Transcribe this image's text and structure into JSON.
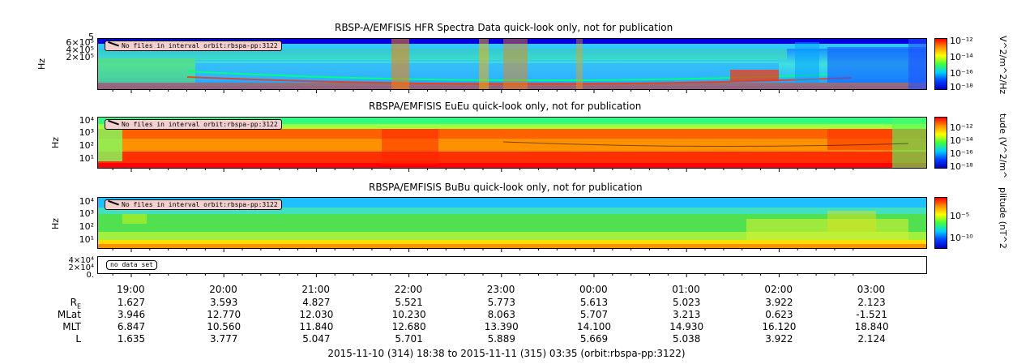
{
  "panels": [
    {
      "title": "RBSP-A/EMFISIS  HFR Spectra Data quick-look only, not for publication",
      "ylabel": "Hz",
      "yticks": [
        "6×10⁵",
        "4×10⁵",
        "2×10⁵"
      ],
      "yextra": "5",
      "badge": "No files in interval orbit:rbspa-pp:3122",
      "colorbar": {
        "title": "V^2/m^2/Hz",
        "ticks": [
          "10⁻¹²",
          "10⁻¹⁴",
          "10⁻¹⁶",
          "10⁻¹⁸"
        ]
      }
    },
    {
      "title": "RBSPA/EMFISIS  EuEu quick-look only, not for publication",
      "ylabel": "Hz",
      "yticks": [
        "10⁴",
        "10³",
        "10²",
        "10¹"
      ],
      "badge": "No files in interval orbit:rbspa-pp:3122",
      "colorbar": {
        "title": "tude (V^2/m^",
        "ticks": [
          "10⁻¹²",
          "10⁻¹⁴",
          "10⁻¹⁶",
          "10⁻¹⁸"
        ]
      }
    },
    {
      "title": "RBSPA/EMFISIS  BuBu quick-look only, not for publication",
      "ylabel": "Hz",
      "yticks": [
        "10⁴",
        "10³",
        "10²",
        "10¹"
      ],
      "badge": "No files in interval orbit:rbspa-pp:3122",
      "colorbar": {
        "title": "plitude (nT^2",
        "ticks": [
          "10⁻⁵",
          "10⁻¹⁰"
        ]
      }
    },
    {
      "title": "",
      "yticks": [
        "4×10⁴",
        "2×10⁴",
        "0."
      ],
      "badge": "no data set"
    }
  ],
  "chart_data": {
    "type": "heatmap",
    "time_ticks": [
      "19:00",
      "20:00",
      "21:00",
      "22:00",
      "23:00",
      "00:00",
      "01:00",
      "02:00",
      "03:00"
    ],
    "ephemeris": [
      {
        "name": "R",
        "subscript": "E",
        "values": [
          "1.627",
          "3.593",
          "4.827",
          "5.521",
          "5.773",
          "5.613",
          "5.023",
          "3.922",
          "2.123"
        ]
      },
      {
        "name": "MLat",
        "values": [
          "3.946",
          "12.770",
          "12.030",
          "10.230",
          "8.063",
          "5.707",
          "3.213",
          "0.623",
          "-1.521"
        ]
      },
      {
        "name": "MLT",
        "values": [
          "6.847",
          "10.560",
          "11.840",
          "12.680",
          "13.390",
          "14.100",
          "14.930",
          "16.120",
          "18.840"
        ]
      },
      {
        "name": "L",
        "values": [
          "1.635",
          "3.777",
          "5.047",
          "5.701",
          "5.889",
          "5.669",
          "5.038",
          "3.922",
          "2.124"
        ]
      }
    ],
    "time_range": "2015-11-10 (314) 18:38 to 2015-11-11 (315) 03:35 (orbit:rbspa-pp:3122)"
  }
}
